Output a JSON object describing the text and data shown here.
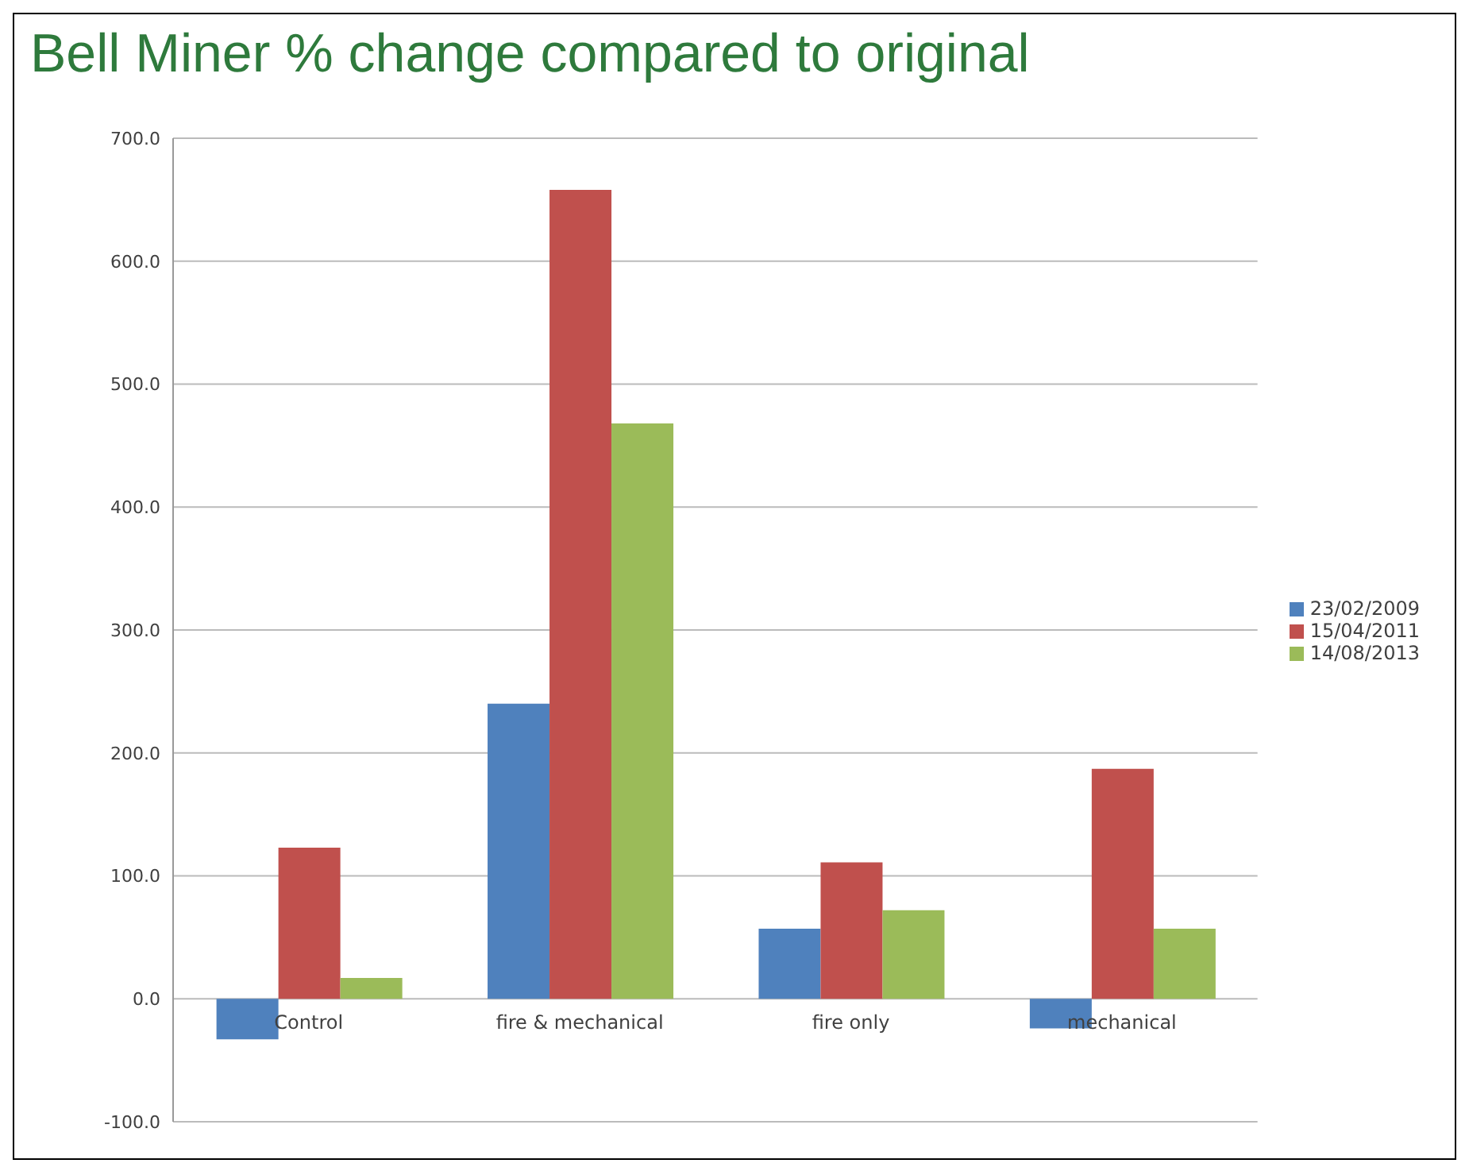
{
  "chart_data": {
    "type": "bar",
    "title": "Bell Miner % change compared to original",
    "categories": [
      "Control",
      "fire & mechanical",
      "fire only",
      "mechanical"
    ],
    "series": [
      {
        "name": "23/02/2009",
        "color": "#4f81bd",
        "values": [
          -33,
          240,
          57,
          -24
        ]
      },
      {
        "name": "15/04/2011",
        "color": "#c0504d",
        "values": [
          123,
          658,
          111,
          187
        ]
      },
      {
        "name": "14/08/2013",
        "color": "#9bbb59",
        "values": [
          17,
          468,
          72,
          57
        ]
      }
    ],
    "ylim": [
      -100,
      700
    ],
    "yticks": [
      {
        "value": -100,
        "label": "-100.0"
      },
      {
        "value": 0,
        "label": "0.0"
      },
      {
        "value": 100,
        "label": "100.0"
      },
      {
        "value": 200,
        "label": "200.0"
      },
      {
        "value": 300,
        "label": "300.0"
      },
      {
        "value": 400,
        "label": "400.0"
      },
      {
        "value": 500,
        "label": "500.0"
      },
      {
        "value": 600,
        "label": "600.0"
      },
      {
        "value": 700,
        "label": "700.0"
      }
    ],
    "grid": "y",
    "legend": "right"
  }
}
